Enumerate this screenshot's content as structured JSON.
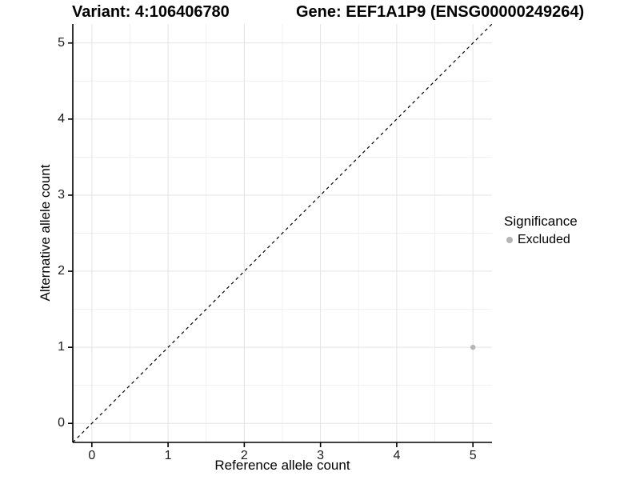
{
  "chart_data": {
    "type": "scatter",
    "title_left": "Variant: 4:106406780",
    "title_right": "Gene: EEF1A1P9 (ENSG00000249264)",
    "xlabel": "Reference allele count",
    "ylabel": "Alternative allele count",
    "xlim": [
      -0.25,
      5.25
    ],
    "ylim": [
      -0.25,
      5.25
    ],
    "xticks": [
      0,
      1,
      2,
      3,
      4,
      5
    ],
    "yticks": [
      0,
      1,
      2,
      3,
      4,
      5
    ],
    "minor_xticks": [
      0.5,
      1.5,
      2.5,
      3.5,
      4.5
    ],
    "minor_yticks": [
      0.5,
      1.5,
      2.5,
      3.5,
      4.5
    ],
    "grid": true,
    "identity_line": {
      "style": "dashed",
      "from": [
        -0.25,
        -0.25
      ],
      "to": [
        5.25,
        5.25
      ]
    },
    "series": [
      {
        "name": "Excluded",
        "color": "#b5b5b5",
        "points": [
          {
            "x": 5,
            "y": 1
          }
        ]
      }
    ],
    "legend": {
      "title": "Significance",
      "position": "right",
      "items": [
        {
          "label": "Excluded",
          "color": "#b5b5b5"
        }
      ]
    }
  },
  "colors": {
    "background": "#ffffff",
    "grid_major": "#e3e3e3",
    "grid_minor": "#f0f0f0",
    "axis": "#000000",
    "identity_line": "#000000",
    "tick_text": "#1a1a1a",
    "point": "#b5b5b5"
  }
}
